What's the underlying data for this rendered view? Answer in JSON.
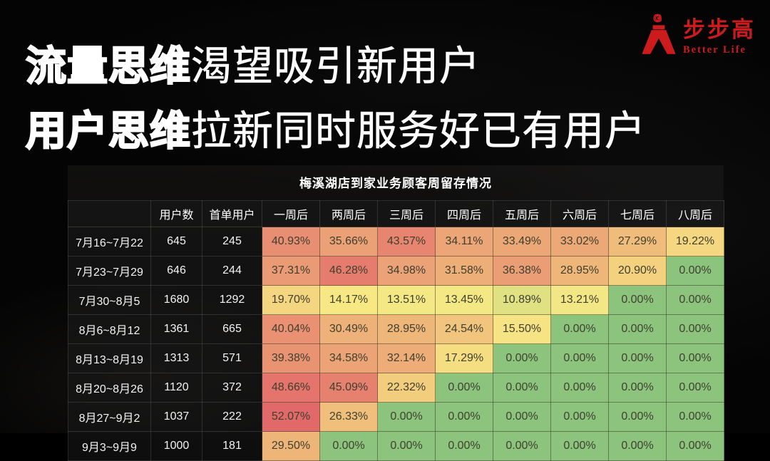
{
  "slide_title": {
    "line1_emphasis": "流量思维",
    "line1_rest": "渴望吸引新用户",
    "line2_emphasis": "用户思维",
    "line2_rest": "拉新同时服务好已有用户",
    "text_color": "#ffffff"
  },
  "logo": {
    "cn": "步步高",
    "en": "Better Life",
    "brand_color": "#cc1b1c"
  },
  "chart_data": {
    "type": "heatmap",
    "title": "梅溪湖店到家业务顾客周留存情况",
    "columns": [
      "用户数",
      "首单用户",
      "一周后",
      "两周后",
      "三周后",
      "四周后",
      "五周后",
      "六周后",
      "七周后",
      "八周后"
    ],
    "value_format": "percent_2dp",
    "rows": [
      {
        "period": "7月16~7月22",
        "users": "645",
        "first_order_users": "245",
        "retention_pct": [
          40.93,
          35.66,
          43.57,
          34.11,
          33.49,
          33.02,
          27.29,
          19.22
        ]
      },
      {
        "period": "7月23~7月29",
        "users": "646",
        "first_order_users": "244",
        "retention_pct": [
          37.31,
          46.28,
          34.98,
          31.58,
          36.38,
          28.95,
          20.9,
          0.0
        ]
      },
      {
        "period": "7月30~8月5",
        "users": "1680",
        "first_order_users": "1292",
        "retention_pct": [
          19.7,
          14.17,
          13.51,
          13.45,
          10.89,
          13.21,
          0.0,
          0.0
        ]
      },
      {
        "period": "8月6~8月12",
        "users": "1361",
        "first_order_users": "665",
        "retention_pct": [
          40.04,
          30.49,
          28.95,
          24.54,
          15.5,
          0.0,
          0.0,
          0.0
        ]
      },
      {
        "period": "8月13~8月19",
        "users": "1313",
        "first_order_users": "571",
        "retention_pct": [
          39.38,
          34.58,
          32.14,
          17.29,
          0.0,
          0.0,
          0.0,
          0.0
        ]
      },
      {
        "period": "8月20~8月26",
        "users": "1120",
        "first_order_users": "372",
        "retention_pct": [
          48.66,
          45.09,
          22.32,
          0.0,
          0.0,
          0.0,
          0.0,
          0.0
        ]
      },
      {
        "period": "8月27~9月2",
        "users": "1037",
        "first_order_users": "222",
        "retention_pct": [
          52.07,
          26.33,
          0.0,
          0.0,
          0.0,
          0.0,
          0.0,
          0.0
        ]
      },
      {
        "period": "9月3~9月9",
        "users": "1000",
        "first_order_users": "181",
        "retention_pct": [
          29.5,
          0.0,
          0.0,
          0.0,
          0.0,
          0.0,
          0.0,
          0.0
        ]
      }
    ],
    "color_scale": {
      "min_value": 0,
      "min_color": "#8cc47e",
      "mid_value": 13.84,
      "mid_color": "#f7e984",
      "max_value": 52.07,
      "max_color": "#e2696a"
    },
    "cell_text_color": "#3f3f2f",
    "legend_position": "none",
    "grid": true
  }
}
